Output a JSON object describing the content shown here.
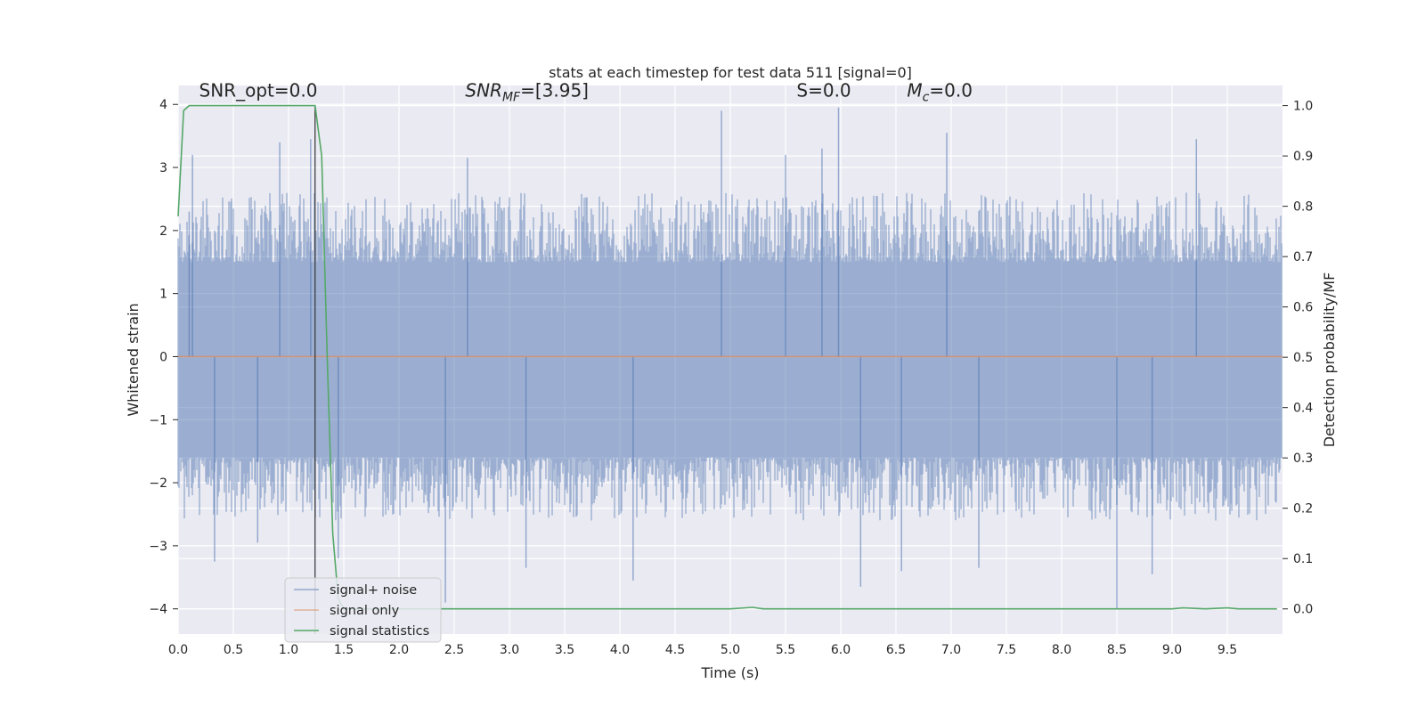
{
  "chart_data": {
    "type": "line",
    "title": "stats at each timestep for test data 511 [signal=0]",
    "xlabel": "Time (s)",
    "ylabel": "Whitened strain",
    "y2label": "Detection probability/MF",
    "xlim": [
      0.0,
      10.0
    ],
    "ylim": [
      -4.4,
      4.3
    ],
    "y2lim": [
      -0.05,
      1.04
    ],
    "x_ticks": [
      0.0,
      0.5,
      1.0,
      1.5,
      2.0,
      2.5,
      3.0,
      3.5,
      4.0,
      4.5,
      5.0,
      5.5,
      6.0,
      6.5,
      7.0,
      7.5,
      8.0,
      8.5,
      9.0,
      9.5
    ],
    "x_tick_labels": [
      "0.0",
      "0.5",
      "1.0",
      "1.5",
      "2.0",
      "2.5",
      "3.0",
      "3.5",
      "4.0",
      "4.5",
      "5.0",
      "5.5",
      "6.0",
      "6.5",
      "7.0",
      "7.5",
      "8.0",
      "8.5",
      "9.0",
      "9.5"
    ],
    "y_ticks": [
      -4,
      -3,
      -2,
      -1,
      0,
      1,
      2,
      3,
      4
    ],
    "y_tick_labels": [
      "−4",
      "−3",
      "−2",
      "−1",
      "0",
      "1",
      "2",
      "3",
      "4"
    ],
    "y2_ticks": [
      0.0,
      0.1,
      0.2,
      0.3,
      0.4,
      0.5,
      0.6,
      0.7,
      0.8,
      0.9,
      1.0
    ],
    "y2_tick_labels": [
      "0.0",
      "0.1",
      "0.2",
      "0.3",
      "0.4",
      "0.5",
      "0.6",
      "0.7",
      "0.8",
      "0.9",
      "1.0"
    ],
    "grid": true,
    "legend_position": "lower-left",
    "vline_x": 1.24,
    "annotations": [
      {
        "name": "snr-opt",
        "text": "SNR_opt=0.0",
        "x": 0.19,
        "y": 4.12
      },
      {
        "name": "snr-mf",
        "text": "SNR_MF=[3.95]",
        "x": 2.6,
        "y": 4.12
      },
      {
        "name": "s-stat",
        "text": "S=0.0",
        "x": 5.6,
        "y": 4.12
      },
      {
        "name": "mc-stat",
        "text": "M_c=0.0",
        "x": 6.6,
        "y": 4.12
      }
    ],
    "series": [
      {
        "name": "signal+ noise",
        "color": "#4c72b0",
        "axis": "left",
        "kind": "noise",
        "summary": {
          "typical_min": -1.6,
          "typical_max": 1.5,
          "observed_min": -4.0,
          "observed_max": 3.95
        },
        "spikes": [
          {
            "x": 0.1,
            "y": 2.3
          },
          {
            "x": 0.13,
            "y": 3.2
          },
          {
            "x": 0.33,
            "y": -3.25
          },
          {
            "x": 0.72,
            "y": -2.95
          },
          {
            "x": 0.92,
            "y": 3.4
          },
          {
            "x": 1.2,
            "y": 3.45
          },
          {
            "x": 1.45,
            "y": -3.2
          },
          {
            "x": 2.42,
            "y": -3.9
          },
          {
            "x": 2.62,
            "y": 3.15
          },
          {
            "x": 3.15,
            "y": -3.35
          },
          {
            "x": 4.12,
            "y": -3.55
          },
          {
            "x": 4.92,
            "y": 3.9
          },
          {
            "x": 5.5,
            "y": 3.2
          },
          {
            "x": 5.83,
            "y": 3.3
          },
          {
            "x": 5.98,
            "y": 3.95
          },
          {
            "x": 6.18,
            "y": -3.65
          },
          {
            "x": 6.55,
            "y": -3.4
          },
          {
            "x": 6.96,
            "y": 3.55
          },
          {
            "x": 7.25,
            "y": -3.35
          },
          {
            "x": 8.5,
            "y": -4.0
          },
          {
            "x": 8.82,
            "y": -3.45
          },
          {
            "x": 9.22,
            "y": 3.45
          }
        ]
      },
      {
        "name": "signal only",
        "color": "#dd8452",
        "axis": "left",
        "x": [
          0.0,
          10.0
        ],
        "y": [
          0.0,
          0.0
        ]
      },
      {
        "name": "signal statistics",
        "color": "#55a868",
        "axis": "right",
        "x": [
          0.0,
          0.05,
          0.1,
          0.2,
          0.4,
          0.6,
          0.8,
          1.0,
          1.2,
          1.24,
          1.3,
          1.35,
          1.4,
          1.45,
          1.5,
          2.0,
          3.0,
          4.0,
          5.0,
          5.2,
          5.3,
          6.0,
          7.0,
          8.0,
          9.0,
          9.1,
          9.3,
          9.5,
          9.6,
          9.95
        ],
        "y": [
          0.78,
          0.99,
          1.0,
          1.0,
          1.0,
          1.0,
          1.0,
          1.0,
          1.0,
          1.0,
          0.9,
          0.5,
          0.15,
          0.02,
          0.0,
          0.0,
          0.0,
          0.0,
          0.0,
          0.003,
          0.0,
          0.0,
          0.0,
          0.0,
          0.0,
          0.002,
          0.0,
          0.002,
          0.0,
          0.0
        ]
      }
    ]
  }
}
